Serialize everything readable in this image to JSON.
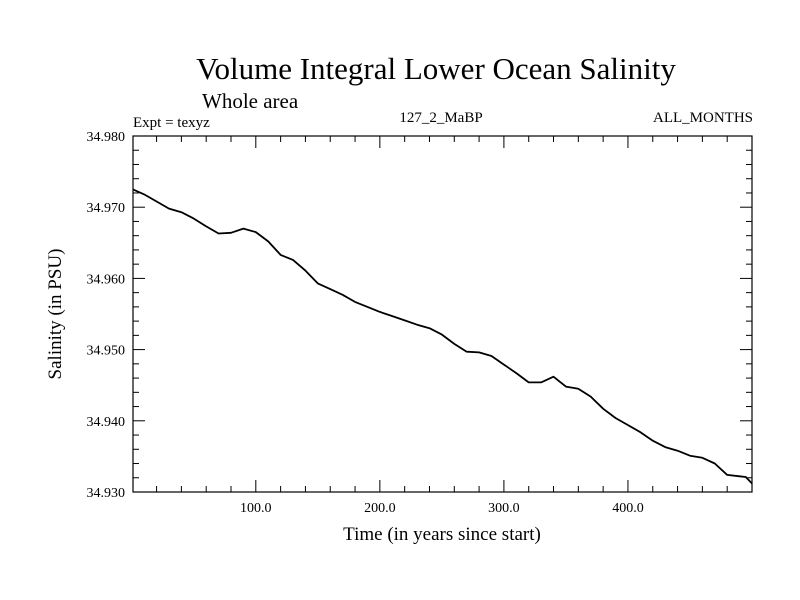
{
  "chart_data": {
    "type": "line",
    "title": "Volume Integral Lower Ocean Salinity",
    "subtitle": "Whole area",
    "info_left": "Expt = texyz",
    "info_center": "127_2_MaBP",
    "info_right": "ALL_MONTHS",
    "xlabel": "Time (in years since start)",
    "ylabel": "Salinity (in PSU)",
    "xlim": [
      1,
      500
    ],
    "ylim": [
      34.93,
      34.98
    ],
    "xticks": [
      {
        "value": 100,
        "label": "100.0"
      },
      {
        "value": 200,
        "label": "200.0"
      },
      {
        "value": 300,
        "label": "300.0"
      },
      {
        "value": 400,
        "label": "400.0"
      }
    ],
    "yticks": [
      {
        "value": 34.93,
        "label": "34.930"
      },
      {
        "value": 34.94,
        "label": "34.940"
      },
      {
        "value": 34.95,
        "label": "34.950"
      },
      {
        "value": 34.96,
        "label": "34.960"
      },
      {
        "value": 34.97,
        "label": "34.970"
      },
      {
        "value": 34.98,
        "label": "34.980"
      }
    ],
    "grid": false,
    "series": [
      {
        "color": "#000000",
        "x": [
          1,
          10,
          20,
          30,
          40,
          50,
          60,
          70,
          80,
          90,
          100,
          110,
          120,
          130,
          140,
          150,
          160,
          170,
          180,
          190,
          200,
          210,
          220,
          230,
          240,
          250,
          260,
          270,
          280,
          290,
          300,
          310,
          320,
          330,
          340,
          350,
          360,
          370,
          380,
          390,
          400,
          410,
          420,
          430,
          440,
          450,
          460,
          470,
          480,
          490,
          495,
          500
        ],
        "y": [
          34.9725,
          34.9718,
          34.9708,
          34.9698,
          34.9693,
          34.9684,
          34.9673,
          34.9663,
          34.9664,
          34.967,
          34.9665,
          34.9652,
          34.9633,
          34.9626,
          34.9611,
          34.9593,
          34.9585,
          34.9577,
          34.9567,
          34.956,
          34.9553,
          34.9547,
          34.9541,
          34.9535,
          34.953,
          34.9521,
          34.9508,
          34.9497,
          34.9496,
          34.9491,
          34.9479,
          34.9467,
          34.9454,
          34.9454,
          34.9462,
          34.9448,
          34.9445,
          34.9434,
          34.9417,
          34.9404,
          34.9394,
          34.9384,
          34.9372,
          34.9363,
          34.9358,
          34.9351,
          34.9348,
          34.934,
          34.9324,
          34.9322,
          34.9321,
          34.9312
        ]
      }
    ]
  }
}
